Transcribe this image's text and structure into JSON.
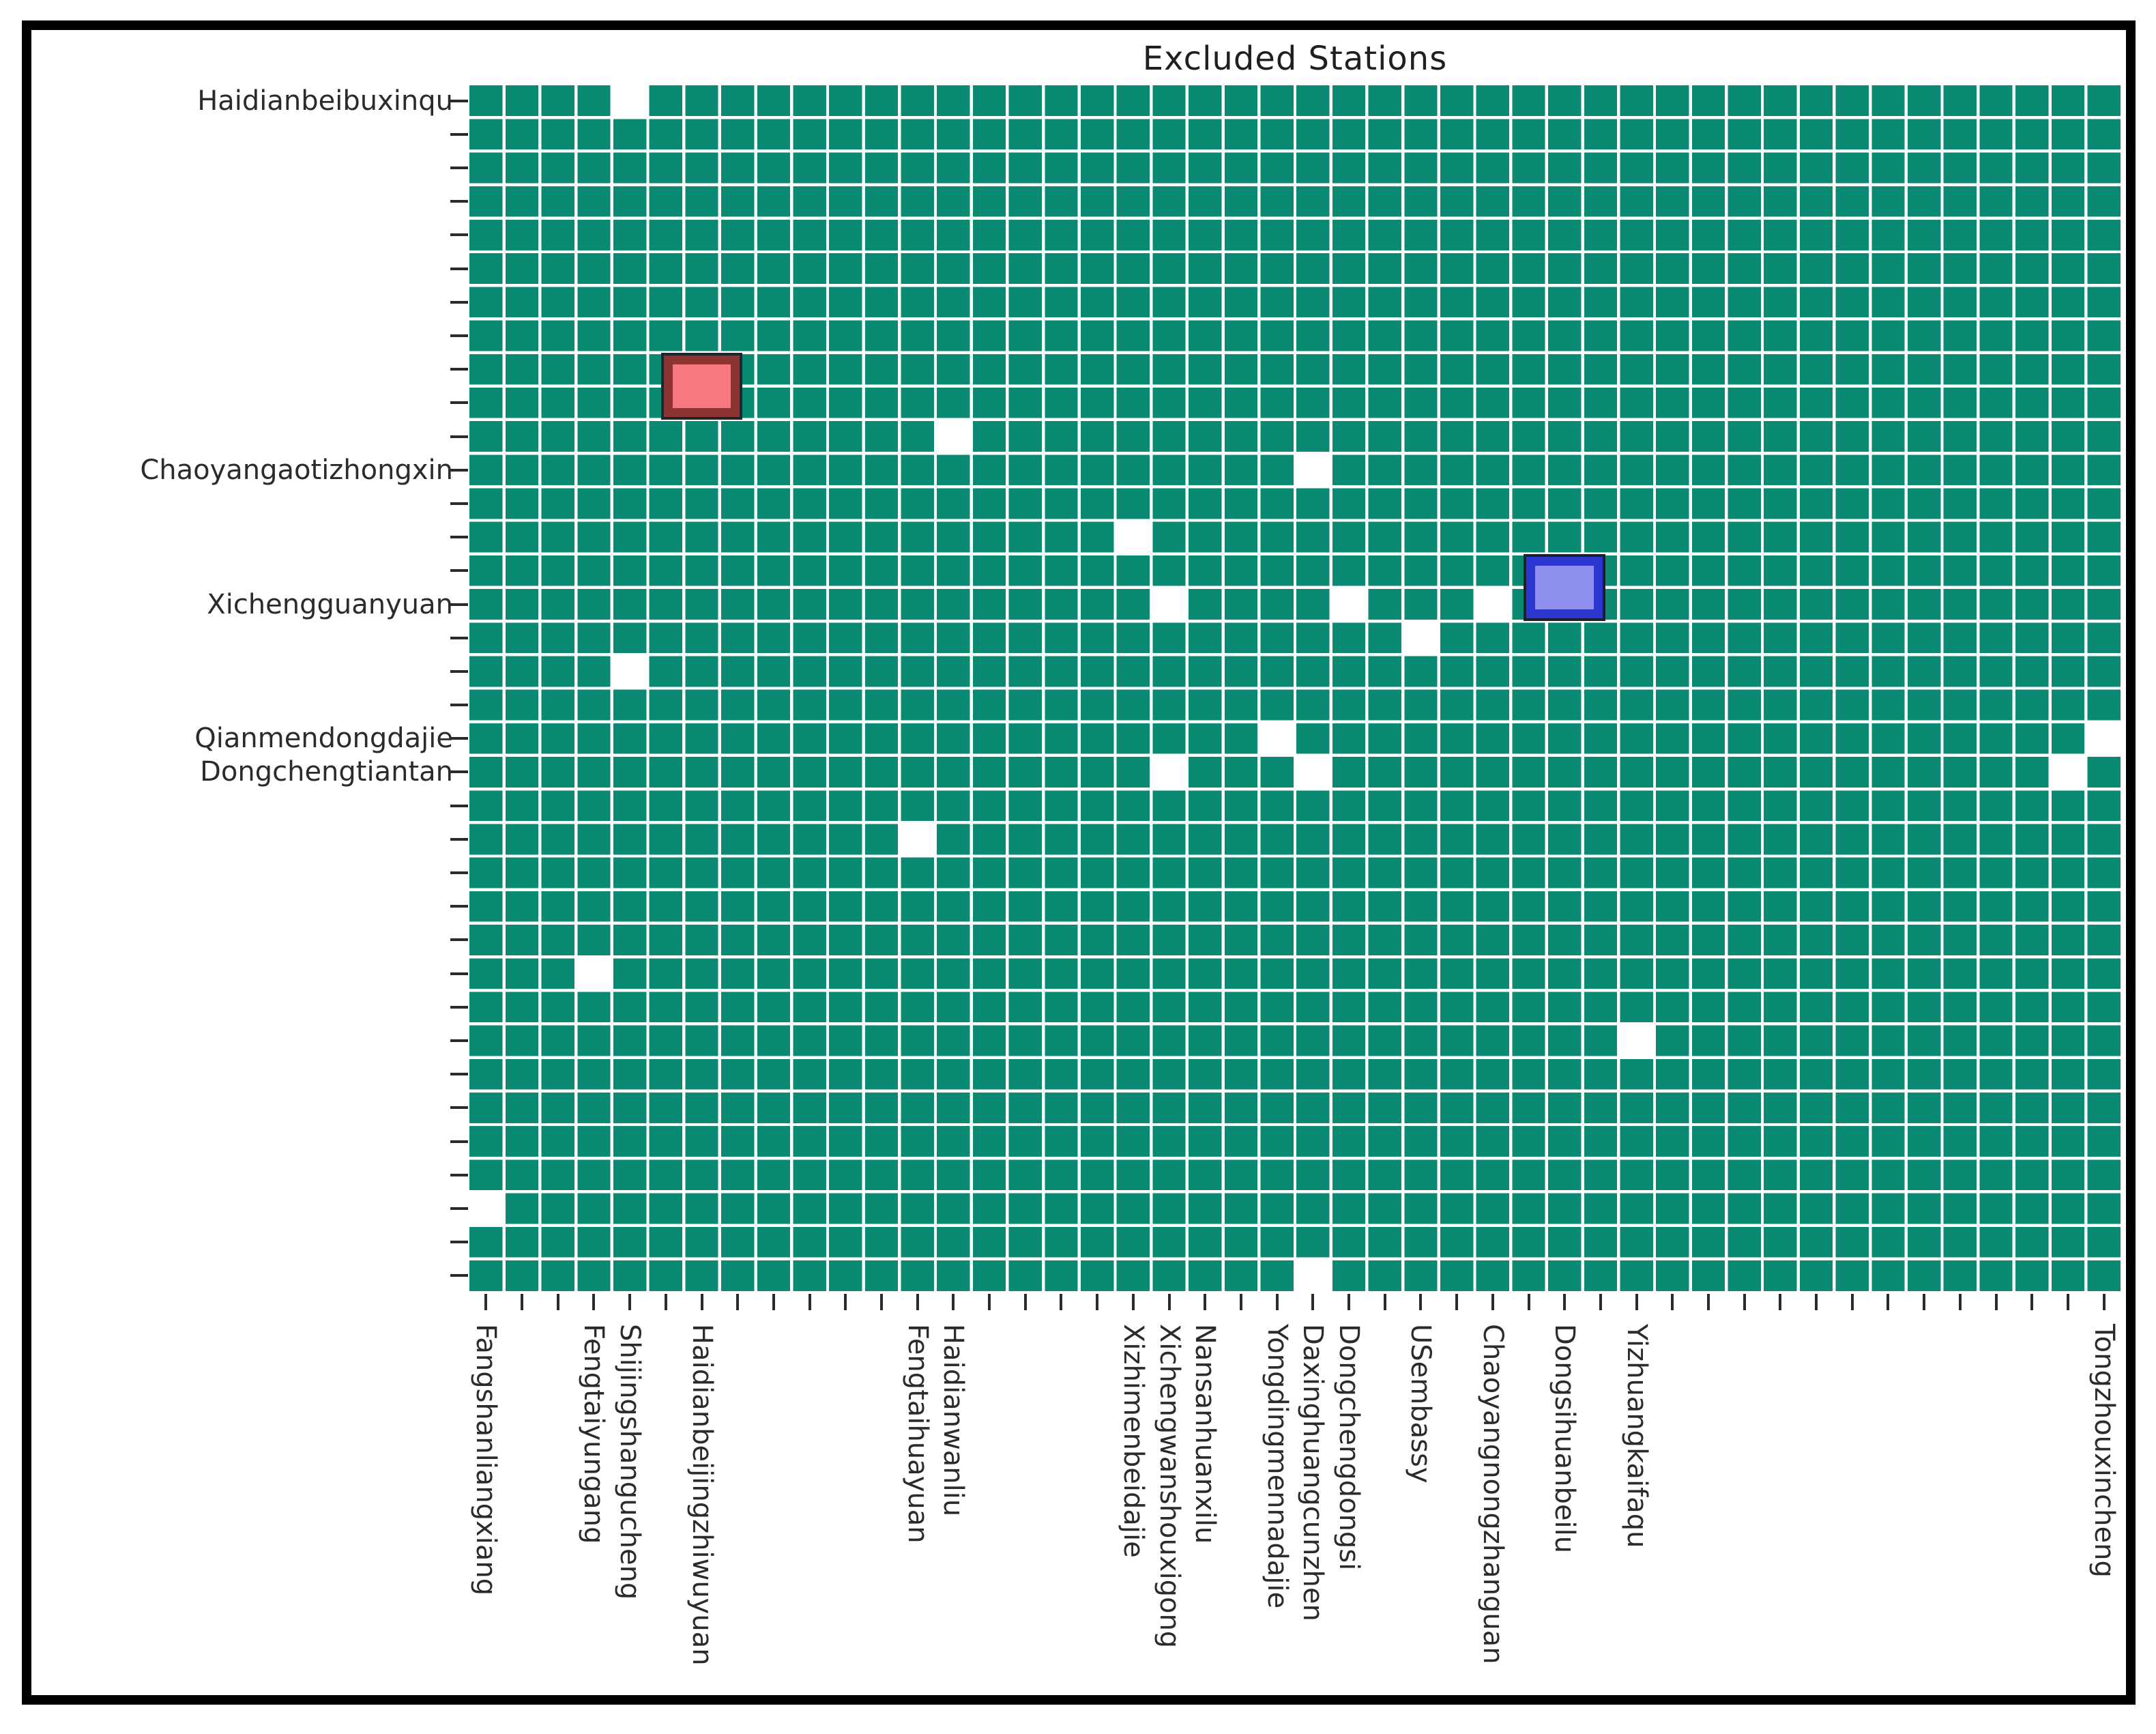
{
  "title": "Excluded Stations",
  "chart_data": {
    "type": "heatmap",
    "title": "Excluded Stations",
    "grid": {
      "rows": 36,
      "cols": 46
    },
    "legend_position": "none",
    "cell_meaning": {
      "teal": "included station pair",
      "white": "excluded station pair"
    },
    "colors": {
      "cell_teal": "#0a8a73",
      "gridline_white": "#ffffff",
      "excluded_white": "#ffffff",
      "red_marker_fill": "#f5797e",
      "red_marker_border": "#8c3431",
      "blue_marker_fill": "#8f8ff0",
      "blue_marker_border": "#2b35cf",
      "outer_border": "#000000",
      "tick_color": "#2b2b2b",
      "label_color": "#2b2b2b",
      "title_color": "#1f1f1f"
    },
    "y_tick_labels": [
      {
        "row": 1,
        "label": "Haidianbeibuxinqu"
      },
      {
        "row": 12,
        "label": "Chaoyangaotizhongxin"
      },
      {
        "row": 16,
        "label": "Xichengguanyuan"
      },
      {
        "row": 20,
        "label": "Qianmendongdajie"
      },
      {
        "row": 21,
        "label": "Dongchengtiantan"
      }
    ],
    "x_tick_labels": [
      {
        "col": 1,
        "label": "Fangshanliangxiang"
      },
      {
        "col": 4,
        "label": "Fengtaiyungang"
      },
      {
        "col": 5,
        "label": "Shijingshangucheng"
      },
      {
        "col": 7,
        "label": "Haidianbeijingzhiwuyuan"
      },
      {
        "col": 13,
        "label": "Fengtaihuayuan"
      },
      {
        "col": 14,
        "label": "Haidianwanliu"
      },
      {
        "col": 19,
        "label": "Xizhimenbeidajie"
      },
      {
        "col": 20,
        "label": "Xichengwanshouxigong"
      },
      {
        "col": 21,
        "label": "Nansanhuanxilu"
      },
      {
        "col": 23,
        "label": "Yongdingmennadajie"
      },
      {
        "col": 24,
        "label": "Daxinghuangcunzhen"
      },
      {
        "col": 25,
        "label": "Dongchengdongsi"
      },
      {
        "col": 27,
        "label": "USembassy"
      },
      {
        "col": 29,
        "label": "Chaoyangnongzhanguan"
      },
      {
        "col": 31,
        "label": "Dongsihuanbeilu"
      },
      {
        "col": 33,
        "label": "Yizhuangkaifaqu"
      },
      {
        "col": 46,
        "label": "Tongzhouxincheng"
      }
    ],
    "excluded_cells": [
      {
        "row": 1,
        "col": 5
      },
      {
        "row": 11,
        "col": 14
      },
      {
        "row": 12,
        "col": 24
      },
      {
        "row": 14,
        "col": 19
      },
      {
        "row": 16,
        "col": 20
      },
      {
        "row": 16,
        "col": 25
      },
      {
        "row": 16,
        "col": 29
      },
      {
        "row": 17,
        "col": 27
      },
      {
        "row": 18,
        "col": 5
      },
      {
        "row": 20,
        "col": 23
      },
      {
        "row": 20,
        "col": 46
      },
      {
        "row": 21,
        "col": 20
      },
      {
        "row": 21,
        "col": 24
      },
      {
        "row": 21,
        "col": 45
      },
      {
        "row": 23,
        "col": 13
      },
      {
        "row": 27,
        "col": 4
      },
      {
        "row": 29,
        "col": 33
      },
      {
        "row": 34,
        "col": 1
      },
      {
        "row": 36,
        "col": 24
      }
    ],
    "markers": [
      {
        "name": "red-marker",
        "color_key": "red",
        "col": 7,
        "rows": [
          9,
          10
        ],
        "column_label": "Haidianbeijingzhiwuyuan"
      },
      {
        "name": "blue-marker",
        "color_key": "blue",
        "col": 31,
        "rows": [
          15,
          16
        ],
        "column_label": "Dongsihuanbeilu"
      }
    ]
  }
}
